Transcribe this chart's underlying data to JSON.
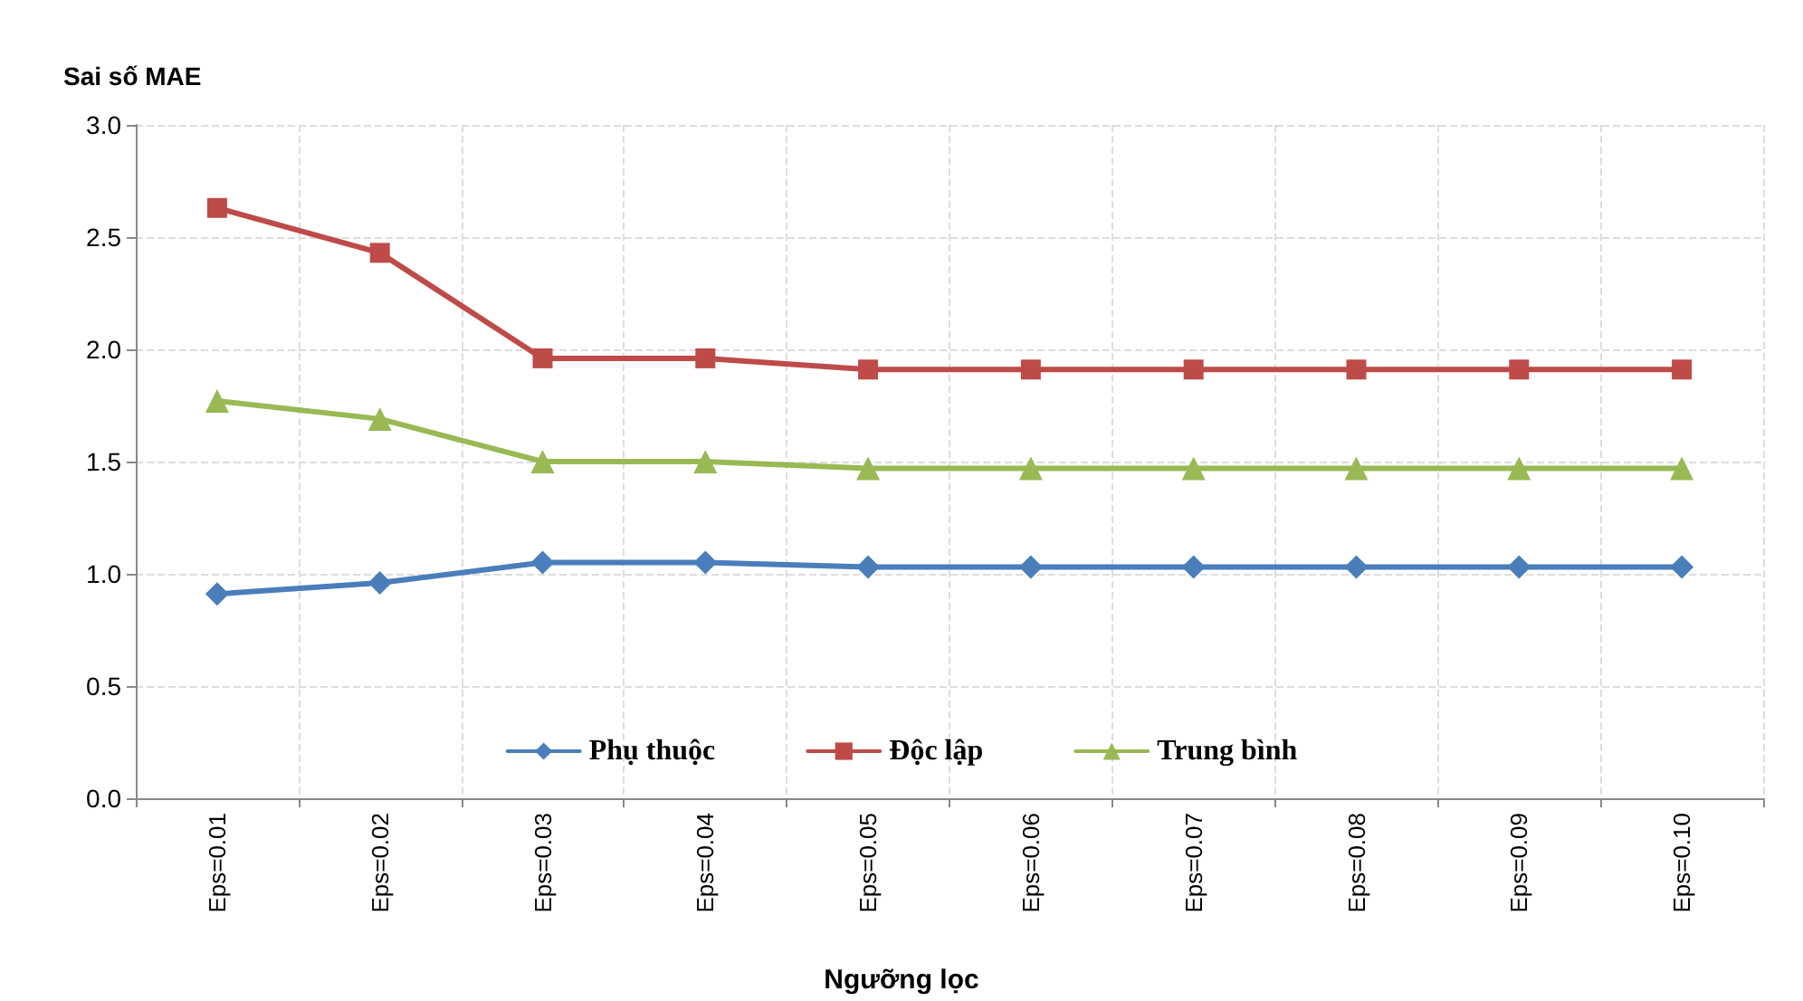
{
  "chart_data": {
    "type": "line",
    "ylabel": "Sai số MAE",
    "xlabel": "Ngưỡng lọc",
    "categories": [
      "Eps=0.01",
      "Eps=0.02",
      "Eps=0.03",
      "Eps=0.04",
      "Eps=0.05",
      "Eps=0.06",
      "Eps=0.07",
      "Eps=0.08",
      "Eps=0.09",
      "Eps=0.10"
    ],
    "series": [
      {
        "name": "Phụ thuộc",
        "color": "#4a7ebb",
        "marker": "diamond",
        "values": [
          0.91,
          0.96,
          1.05,
          1.05,
          1.03,
          1.03,
          1.03,
          1.03,
          1.03,
          1.03
        ]
      },
      {
        "name": "Độc lập",
        "color": "#be4b48",
        "marker": "square",
        "values": [
          2.63,
          2.43,
          1.96,
          1.96,
          1.91,
          1.91,
          1.91,
          1.91,
          1.91,
          1.91
        ]
      },
      {
        "name": "Trung bình",
        "color": "#98b954",
        "marker": "triangle",
        "values": [
          1.77,
          1.69,
          1.5,
          1.5,
          1.47,
          1.47,
          1.47,
          1.47,
          1.47,
          1.47
        ]
      }
    ],
    "ylim": [
      0,
      3
    ],
    "yticks": [
      {
        "value": 0,
        "label": "0.0"
      },
      0.5,
      {
        "value": 1,
        "label": "1.0"
      },
      1.5,
      {
        "value": 2,
        "label": "2.0"
      },
      2.5,
      {
        "value": 3,
        "label": "3.0"
      }
    ],
    "grid": true,
    "legend": "bottom",
    "line_style": "solid"
  }
}
